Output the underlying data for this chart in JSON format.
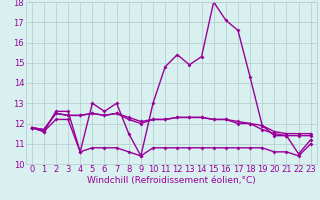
{
  "x": [
    0,
    1,
    2,
    3,
    4,
    5,
    6,
    7,
    8,
    9,
    10,
    11,
    12,
    13,
    14,
    15,
    16,
    17,
    18,
    19,
    20,
    21,
    22,
    23
  ],
  "line1": [
    11.8,
    11.6,
    12.6,
    12.6,
    10.6,
    13.0,
    12.6,
    13.0,
    11.5,
    10.4,
    13.0,
    14.8,
    15.4,
    14.9,
    15.3,
    18.0,
    17.1,
    16.6,
    14.3,
    11.9,
    11.4,
    11.4,
    10.5,
    11.2
  ],
  "line2": [
    11.8,
    11.7,
    12.5,
    12.4,
    12.4,
    12.5,
    12.4,
    12.5,
    12.3,
    12.1,
    12.2,
    12.2,
    12.3,
    12.3,
    12.3,
    12.2,
    12.2,
    12.1,
    12.0,
    11.9,
    11.6,
    11.5,
    11.5,
    11.5
  ],
  "line3": [
    11.8,
    11.7,
    12.5,
    12.4,
    12.4,
    12.5,
    12.4,
    12.5,
    12.2,
    12.0,
    12.2,
    12.2,
    12.3,
    12.3,
    12.3,
    12.2,
    12.2,
    12.0,
    12.0,
    11.7,
    11.5,
    11.4,
    11.4,
    11.4
  ],
  "line4": [
    11.8,
    11.6,
    12.2,
    12.2,
    10.6,
    10.8,
    10.8,
    10.8,
    10.6,
    10.4,
    10.8,
    10.8,
    10.8,
    10.8,
    10.8,
    10.8,
    10.8,
    10.8,
    10.8,
    10.8,
    10.6,
    10.6,
    10.4,
    11.0
  ],
  "color": "#990099",
  "bg_color": "#d8f0f0",
  "grid_color": "#b8d0d0",
  "ylim": [
    10,
    18
  ],
  "yticks": [
    10,
    11,
    12,
    13,
    14,
    15,
    16,
    17,
    18
  ],
  "xticks": [
    0,
    1,
    2,
    3,
    4,
    5,
    6,
    7,
    8,
    9,
    10,
    11,
    12,
    13,
    14,
    15,
    16,
    17,
    18,
    19,
    20,
    21,
    22,
    23
  ],
  "xlabel": "Windchill (Refroidissement éolien,°C)",
  "xlabel_fontsize": 6.5,
  "tick_fontsize": 6.0,
  "line_width": 1.0,
  "marker": "D",
  "marker_size": 2.0
}
